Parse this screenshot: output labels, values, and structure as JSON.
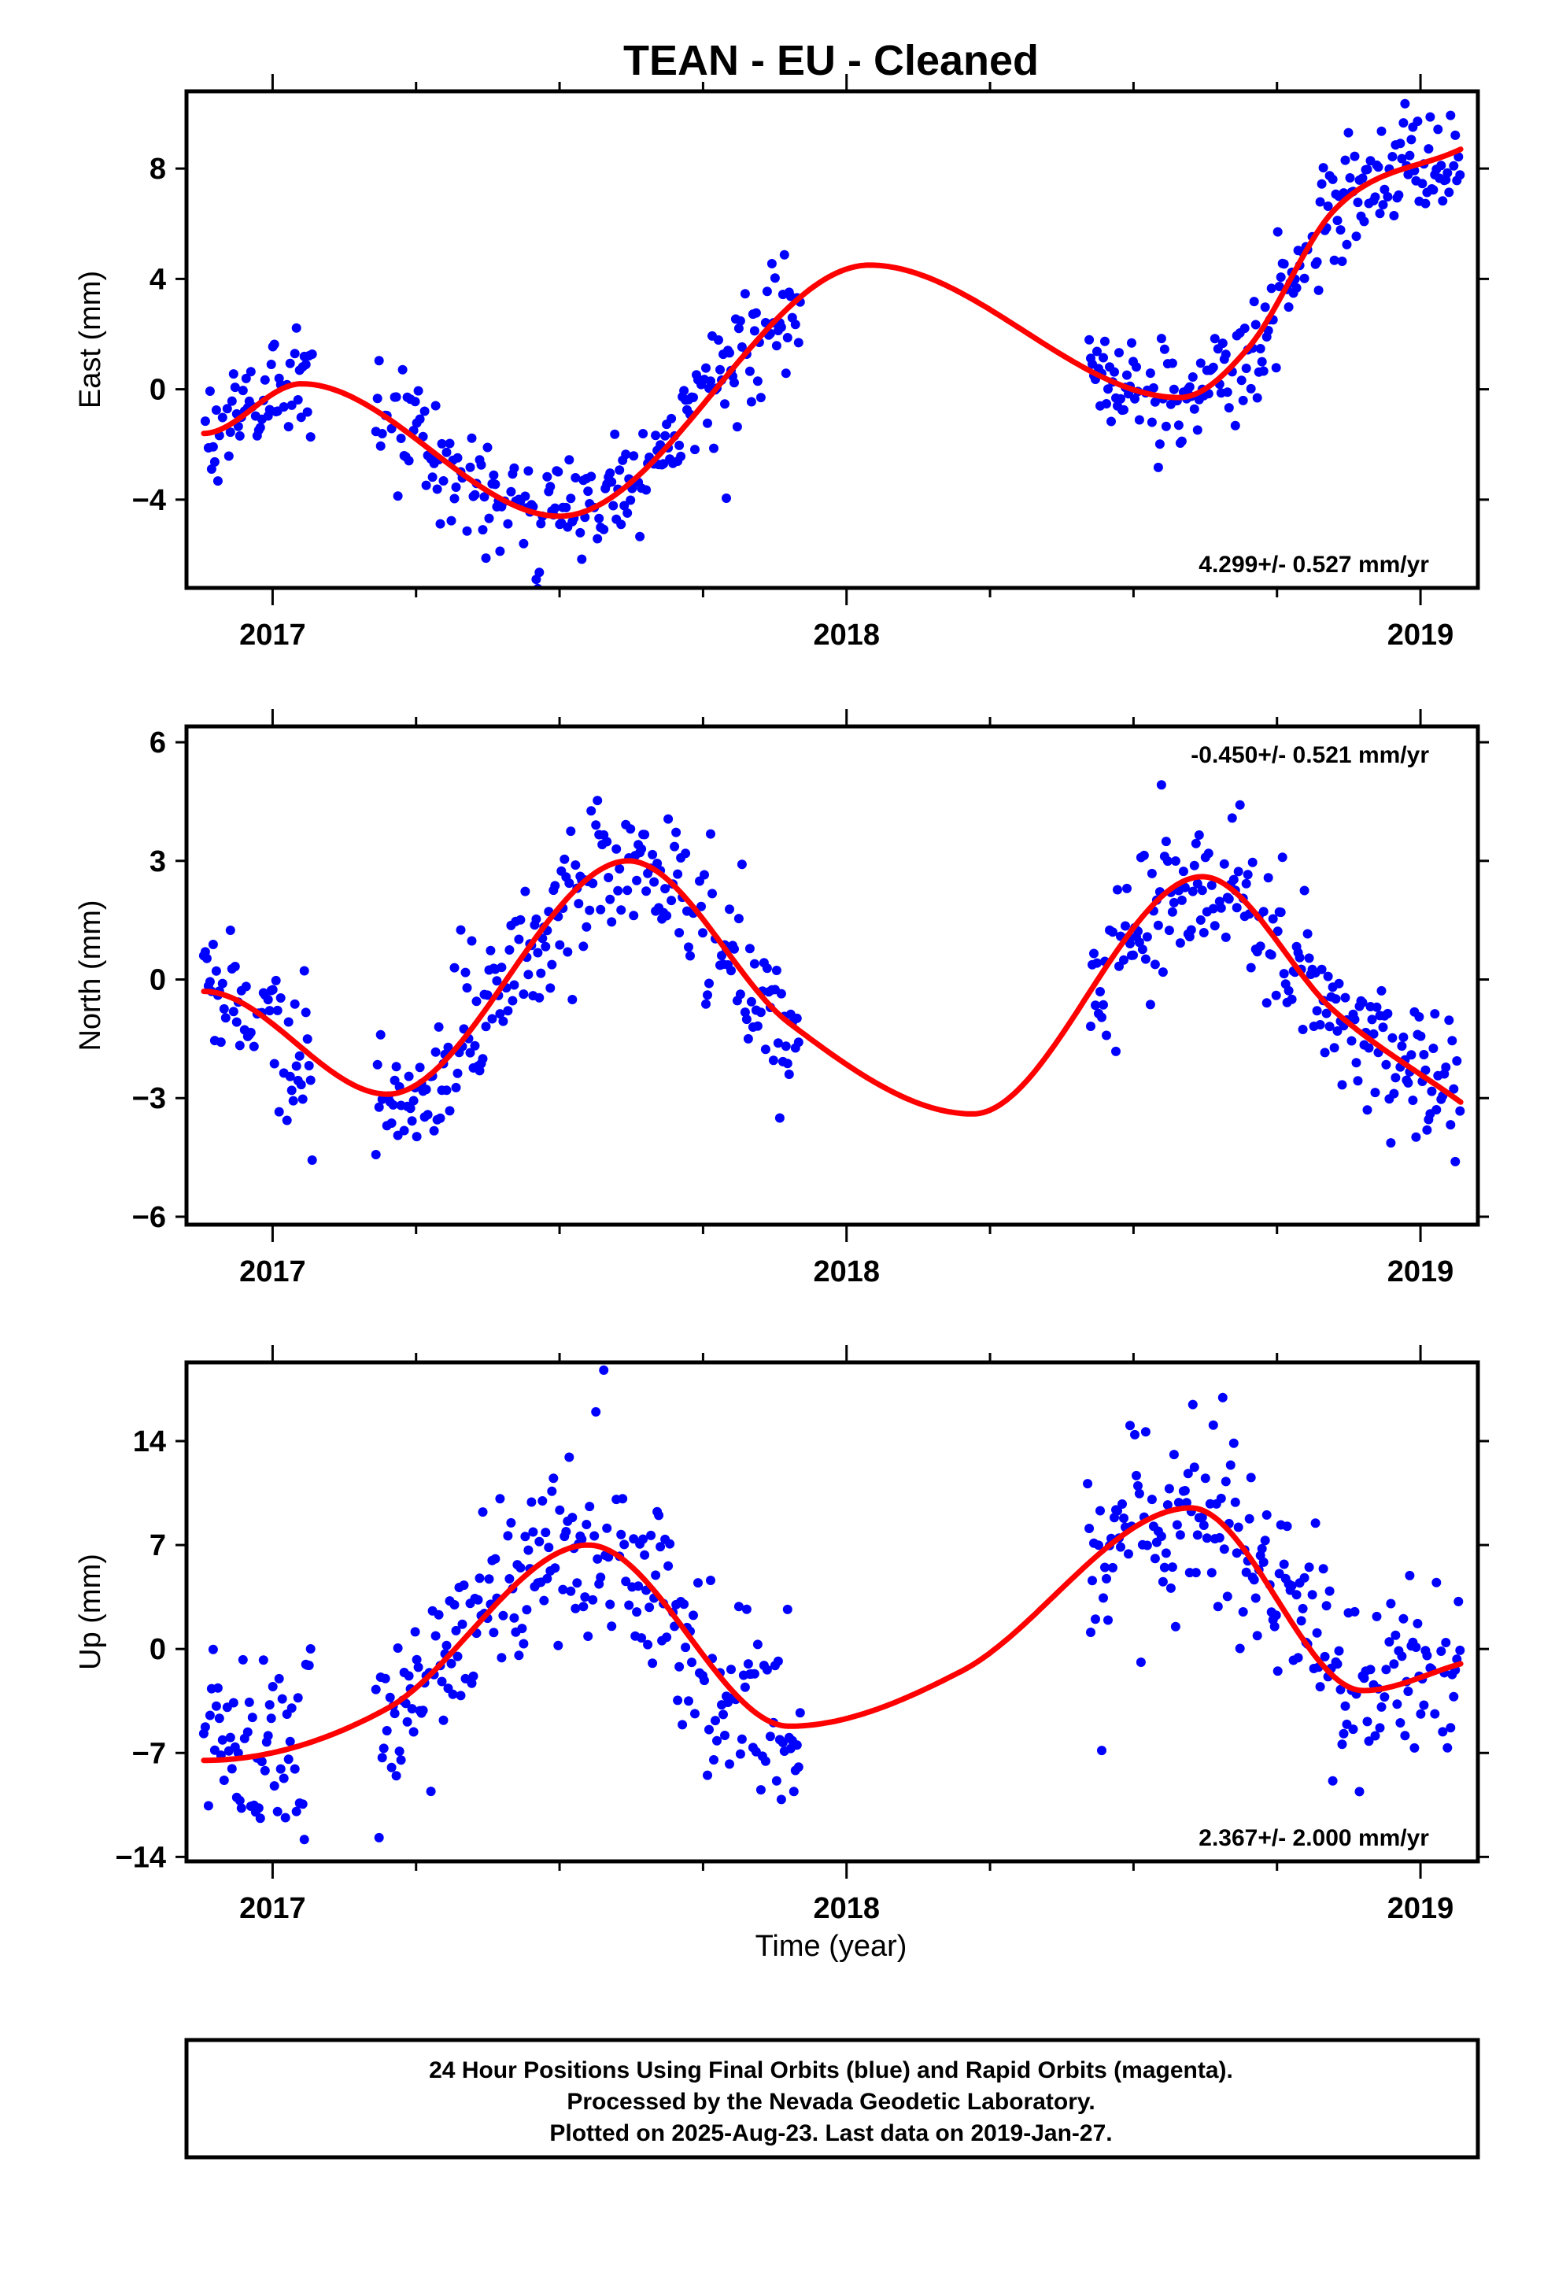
{
  "title": "TEAN  - EU - Cleaned",
  "xlabel": "Time (year)",
  "footer": {
    "lines": [
      "24 Hour Positions Using Final Orbits (blue) and Rapid Orbits (magenta).",
      "Processed by the Nevada Geodetic Laboratory.",
      "Plotted on 2025-Aug-23. Last data on 2019-Jan-27."
    ]
  },
  "colors": {
    "points": "#0000ff",
    "fit": "#ff0000",
    "axes": "#000000"
  },
  "chart_data": [
    {
      "type": "scatter",
      "ylabel": "East (mm)",
      "rate": "4.299+/- 0.527 mm/yr",
      "rate_position": "bottom-right",
      "xlim": [
        2016.85,
        2019.1
      ],
      "ylim": [
        -7.2,
        10.8
      ],
      "xticks": [
        2017,
        2018,
        2019
      ],
      "yticks": [
        -4,
        0,
        4,
        8
      ],
      "data_segments": [
        [
          2016.88,
          2017.07
        ],
        [
          2017.18,
          2017.92
        ],
        [
          2018.42,
          2019.07
        ]
      ],
      "fit_knots": {
        "x": [
          2016.88,
          2017.05,
          2017.5,
          2018.04,
          2018.58,
          2018.7,
          2018.85,
          2019.07
        ],
        "y": [
          -1.6,
          0.2,
          -4.6,
          4.5,
          -0.3,
          1.5,
          6.5,
          8.7
        ]
      },
      "scatter_noise_sd": 1.0
    },
    {
      "type": "scatter",
      "ylabel": "North (mm)",
      "rate": "-0.450+/- 0.521 mm/yr",
      "rate_position": "top-right",
      "xlim": [
        2016.85,
        2019.1
      ],
      "ylim": [
        -6.2,
        6.4
      ],
      "xticks": [
        2017,
        2018,
        2019
      ],
      "yticks": [
        -6,
        -3,
        0,
        3,
        6
      ],
      "data_segments": [
        [
          2016.88,
          2017.07
        ],
        [
          2017.18,
          2017.92
        ],
        [
          2018.42,
          2019.07
        ]
      ],
      "fit_knots": {
        "x": [
          2016.88,
          2017.2,
          2017.62,
          2017.9,
          2018.22,
          2018.62,
          2018.85,
          2019.07
        ],
        "y": [
          -0.3,
          -2.9,
          3.0,
          -1.1,
          -3.4,
          2.6,
          -0.8,
          -3.1
        ]
      },
      "scatter_noise_sd": 0.9
    },
    {
      "type": "scatter",
      "ylabel": "Up (mm)",
      "rate": "2.367+/- 2.000 mm/yr",
      "rate_position": "bottom-right",
      "xlim": [
        2016.85,
        2019.1
      ],
      "ylim": [
        -14.3,
        19.3
      ],
      "xticks": [
        2017,
        2018,
        2019
      ],
      "yticks": [
        -14,
        -7,
        0,
        7,
        14
      ],
      "data_segments": [
        [
          2016.88,
          2017.07
        ],
        [
          2017.18,
          2017.92
        ],
        [
          2018.42,
          2019.07
        ]
      ],
      "fit_knots": {
        "x": [
          2016.88,
          2017.2,
          2017.55,
          2017.9,
          2018.2,
          2018.6,
          2018.9,
          2019.07
        ],
        "y": [
          -7.5,
          -4.0,
          7.0,
          -5.2,
          -1.5,
          9.5,
          -2.8,
          -1.0
        ]
      },
      "scatter_noise_sd": 3.2
    }
  ]
}
